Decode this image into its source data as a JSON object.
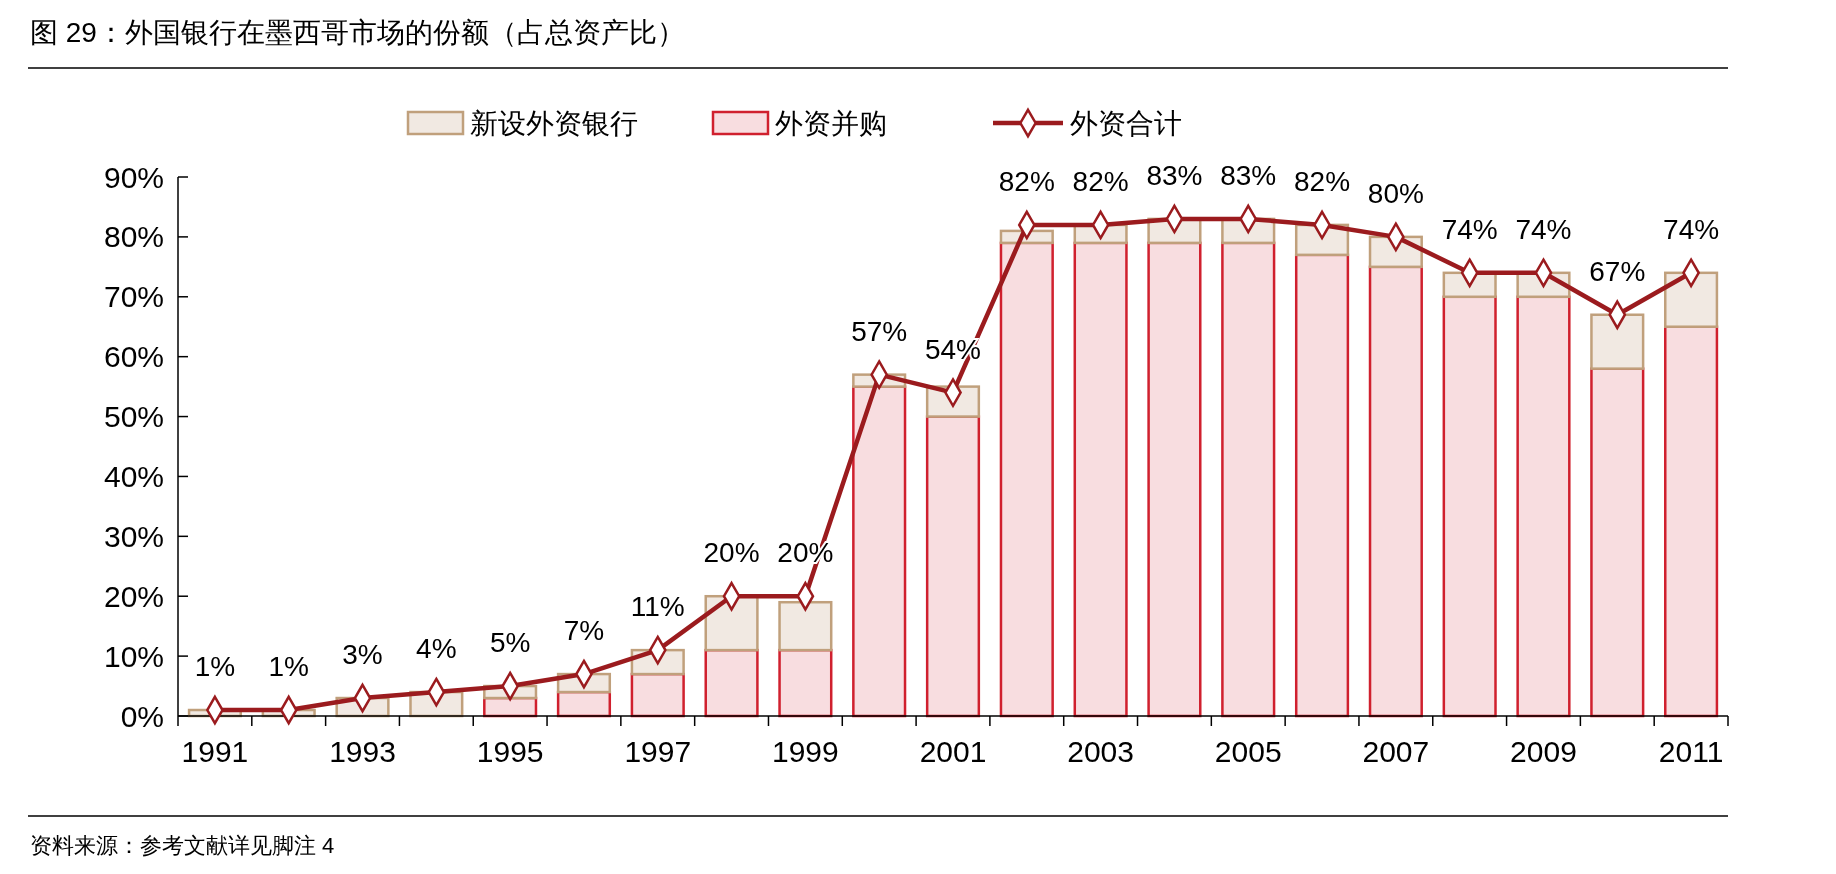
{
  "chart_data": {
    "type": "bar",
    "stacked": true,
    "title": "图 29：外国银行在墨西哥市场的份额（占总资产比）",
    "categories": [
      "1991",
      null,
      "1993",
      null,
      "1995",
      null,
      "1997",
      null,
      "1999",
      null,
      "2001",
      null,
      "2003",
      null,
      "2005",
      null,
      "2007",
      null,
      "2009",
      null,
      "2011"
    ],
    "series": [
      {
        "name": "外资并购",
        "color": "#f8dde0",
        "values": [
          0,
          0,
          0,
          0,
          3,
          4,
          7,
          11,
          11,
          55,
          50,
          79,
          79,
          79,
          79,
          77,
          75,
          70,
          70,
          58,
          65
        ]
      },
      {
        "name": "新设外资银行",
        "color": "#f1e9e2",
        "values": [
          1,
          1,
          3,
          4,
          2,
          3,
          4,
          9,
          8,
          2,
          5,
          2,
          3,
          4,
          4,
          5,
          5,
          4,
          4,
          9,
          9
        ]
      },
      {
        "name": "外资合计",
        "type": "line",
        "color": "#9b1b1e",
        "marker": "diamond",
        "values": [
          1,
          1,
          3,
          4,
          5,
          7,
          11,
          20,
          20,
          57,
          54,
          82,
          82,
          83,
          83,
          82,
          80,
          74,
          74,
          67,
          74
        ],
        "value_labels": [
          "1%",
          "1%",
          "3%",
          "4%",
          "5%",
          "7%",
          "11%",
          "20%",
          "20%",
          "57%",
          "54%",
          "82%",
          "82%",
          "83%",
          "83%",
          "82%",
          "80%",
          "74%",
          "74%",
          "67%",
          "74%"
        ]
      }
    ],
    "ylim": [
      0,
      90
    ],
    "yticks": [
      {
        "value": 0,
        "label": "0%"
      },
      {
        "value": 10,
        "label": "10%"
      },
      {
        "value": 20,
        "label": "20%"
      },
      {
        "value": 30,
        "label": "30%"
      },
      {
        "value": 40,
        "label": "40%"
      },
      {
        "value": 50,
        "label": "50%"
      },
      {
        "value": 60,
        "label": "60%"
      },
      {
        "value": 70,
        "label": "70%"
      },
      {
        "value": 80,
        "label": "80%"
      },
      {
        "value": 90,
        "label": "90%"
      }
    ],
    "legend": "top",
    "grid": false,
    "annotations": [
      "资料来源：参考文献详见脚注 4"
    ]
  }
}
